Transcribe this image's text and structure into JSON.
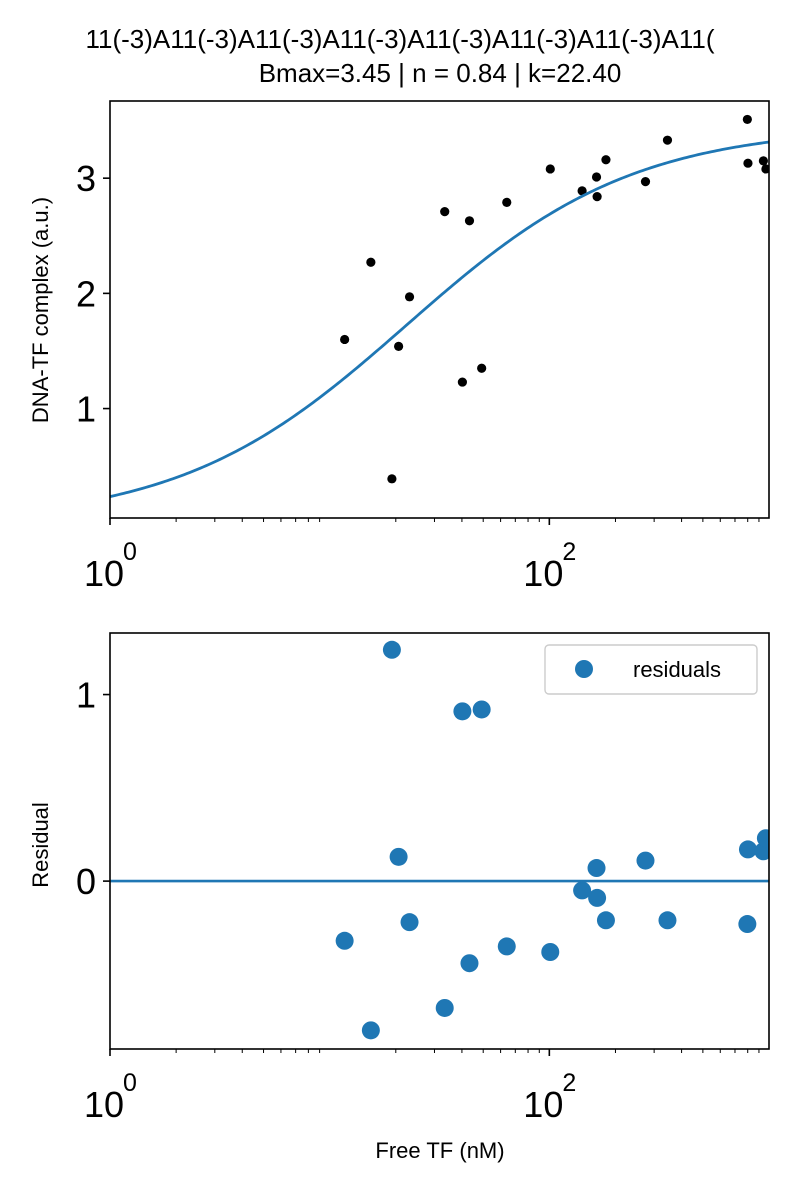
{
  "colors": {
    "fit_line": "#1f77b4",
    "points_top": "#000000",
    "residual_points": "#1f77b4",
    "zero_line": "#1f77b4"
  },
  "header": {
    "title_line1": "11(-3)A11(-3)A11(-3)A11(-3)A11(-3)A11(-3)A11(-3)A11(",
    "title_line2": "Bmax=3.45 | n = 0.84 | k=22.40"
  },
  "chart_data": [
    {
      "type": "scatter",
      "title": "11(-3)A11(-3)A11(-3)A11(-3)A11(-3)A11(-3)A11(-3)A11( Bmax=3.45 | n = 0.84 | k=22.40",
      "xlabel": "",
      "ylabel": "DNA-TF complex (a.u.)",
      "xscale": "log",
      "xlim": [
        1,
        1000
      ],
      "ylim": [
        0.05,
        3.67
      ],
      "xticks": [
        {
          "base": "10",
          "exp": "0",
          "value": 1
        },
        {
          "base": "10",
          "exp": "2",
          "value": 100
        }
      ],
      "yticks": [
        {
          "label": "1",
          "value": 1
        },
        {
          "label": "2",
          "value": 2
        },
        {
          "label": "3",
          "value": 3
        }
      ],
      "grid": false,
      "series": [
        {
          "kind": "points",
          "color": "#000000",
          "points": [
            {
              "x": 11.7,
              "y": 1.6
            },
            {
              "x": 15.4,
              "y": 2.27
            },
            {
              "x": 19.2,
              "y": 0.39
            },
            {
              "x": 20.6,
              "y": 1.54
            },
            {
              "x": 23.1,
              "y": 1.97
            },
            {
              "x": 33.4,
              "y": 2.71
            },
            {
              "x": 40.2,
              "y": 1.23
            },
            {
              "x": 43.3,
              "y": 2.63
            },
            {
              "x": 49.2,
              "y": 1.35
            },
            {
              "x": 64.0,
              "y": 2.79
            },
            {
              "x": 101.0,
              "y": 3.08
            },
            {
              "x": 141.0,
              "y": 2.89
            },
            {
              "x": 165.0,
              "y": 2.84
            },
            {
              "x": 164.0,
              "y": 3.01
            },
            {
              "x": 181.0,
              "y": 3.16
            },
            {
              "x": 274.0,
              "y": 2.97
            },
            {
              "x": 345.0,
              "y": 3.33
            },
            {
              "x": 797.0,
              "y": 3.51
            },
            {
              "x": 802.0,
              "y": 3.13
            },
            {
              "x": 943.0,
              "y": 3.15
            },
            {
              "x": 968.0,
              "y": 3.08
            }
          ]
        },
        {
          "kind": "fit_curve",
          "color": "#1f77b4",
          "model": "hill",
          "Bmax": 3.45,
          "n": 0.84,
          "k": 22.4
        }
      ]
    },
    {
      "type": "scatter",
      "title": "",
      "xlabel": "Free TF (nM)",
      "ylabel": "Residual",
      "xscale": "log",
      "xlim": [
        1,
        1000
      ],
      "ylim": [
        -0.9,
        1.33
      ],
      "xticks": [
        {
          "base": "10",
          "exp": "0",
          "value": 1
        },
        {
          "base": "10",
          "exp": "2",
          "value": 100
        }
      ],
      "yticks": [
        {
          "label": "0",
          "value": 0
        },
        {
          "label": "1",
          "value": 1
        }
      ],
      "grid": false,
      "legend": {
        "placement": "upper-right",
        "entries": [
          "residuals"
        ]
      },
      "hline": {
        "y": 0,
        "color": "#1f77b4"
      },
      "series": [
        {
          "name": "residuals",
          "color": "#1f77b4",
          "points": [
            {
              "x": 11.7,
              "y": -0.32
            },
            {
              "x": 15.4,
              "y": -0.8
            },
            {
              "x": 19.2,
              "y": 1.24
            },
            {
              "x": 20.6,
              "y": 0.13
            },
            {
              "x": 23.1,
              "y": -0.22
            },
            {
              "x": 33.4,
              "y": -0.68
            },
            {
              "x": 40.2,
              "y": 0.91
            },
            {
              "x": 43.3,
              "y": -0.44
            },
            {
              "x": 49.2,
              "y": 0.92
            },
            {
              "x": 64.0,
              "y": -0.35
            },
            {
              "x": 101.0,
              "y": -0.38
            },
            {
              "x": 141.0,
              "y": -0.05
            },
            {
              "x": 165.0,
              "y": -0.09
            },
            {
              "x": 164.0,
              "y": 0.07
            },
            {
              "x": 181.0,
              "y": -0.21
            },
            {
              "x": 274.0,
              "y": 0.11
            },
            {
              "x": 345.0,
              "y": -0.21
            },
            {
              "x": 797.0,
              "y": -0.23
            },
            {
              "x": 802.0,
              "y": 0.17
            },
            {
              "x": 943.0,
              "y": 0.16
            },
            {
              "x": 968.0,
              "y": 0.23
            }
          ]
        }
      ]
    }
  ]
}
